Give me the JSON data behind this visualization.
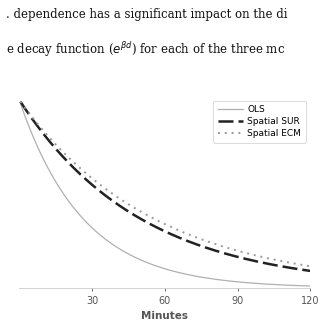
{
  "text_line1": ". dependence has a significant impact on the di",
  "text_line2": "e decay function ($e^{\\beta d}$) for each of the three mc",
  "xlabel": "Minutes",
  "xlim": [
    0,
    120
  ],
  "xticks": [
    30,
    60,
    90,
    120
  ],
  "ylim": [
    0,
    1.02
  ],
  "lines": {
    "OLS": {
      "beta": -0.038,
      "color": "#b0b0b0",
      "linestyle": "solid",
      "linewidth": 0.9
    },
    "Spatial SUR": {
      "beta": -0.02,
      "color": "#222222",
      "linestyle": "dashed",
      "linewidth": 1.8,
      "dashes": [
        6,
        2
      ]
    },
    "Spatial ECM": {
      "beta": -0.018,
      "color": "#999999",
      "linestyle": "dotted",
      "linewidth": 1.4,
      "dashes": [
        1,
        2.5
      ]
    }
  },
  "background_color": "#ffffff",
  "spine_color": "#cccccc",
  "tick_color": "#555555",
  "text_color": "#111111",
  "legend_fontsize": 6.5,
  "axis_fontsize": 7.0,
  "text_fontsize": 8.5
}
